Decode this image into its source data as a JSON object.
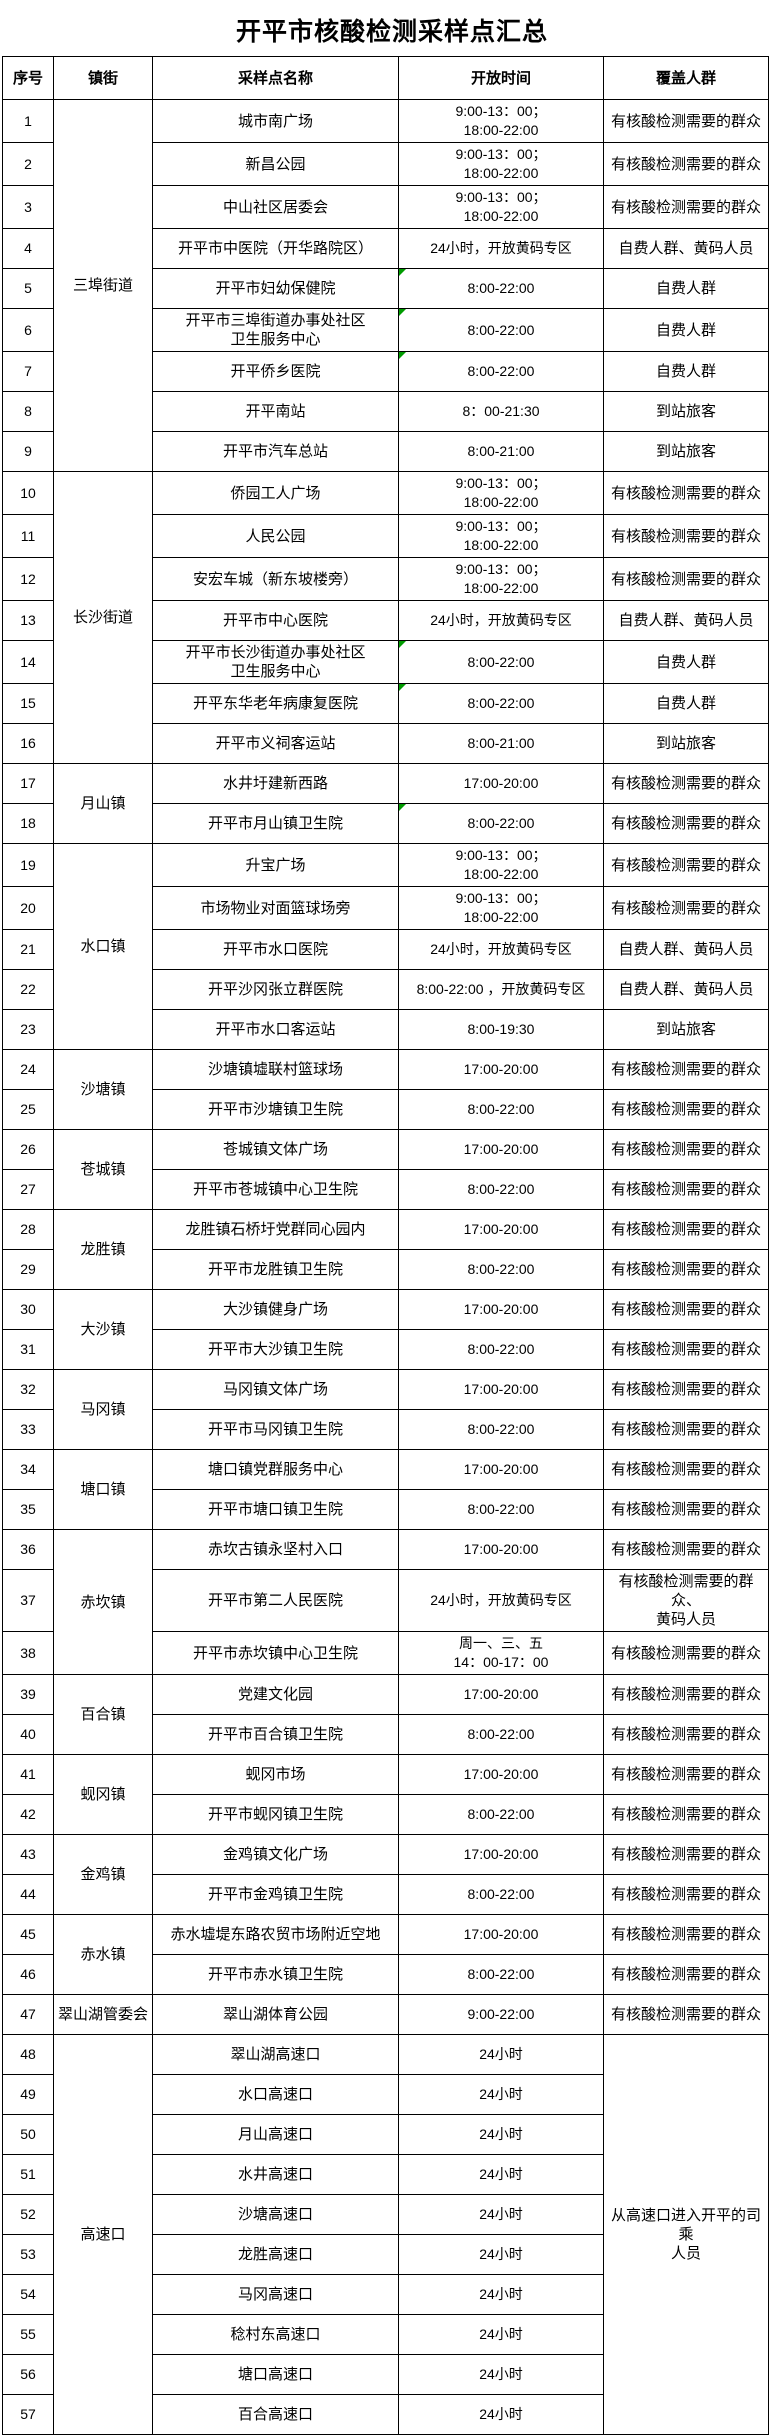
{
  "page": {
    "title": "开平市核酸检测采样点汇总"
  },
  "colors": {
    "background": "#ffffff",
    "text": "#000000",
    "border": "#000000",
    "green_corner_marker": "#009b00"
  },
  "table": {
    "columns": [
      "序号",
      "镇街",
      "采样点名称",
      "开放时间",
      "覆盖人群"
    ],
    "rows": [
      {
        "num": "1",
        "town": "三埠街道",
        "tspan": 9,
        "name": "城市南广场",
        "time": "9:00-13：00；\n18:00-22:00",
        "cover": "有核酸检测需要的群众"
      },
      {
        "num": "2",
        "name": "新昌公园",
        "time": "9:00-13：00；\n18:00-22:00",
        "cover": "有核酸检测需要的群众"
      },
      {
        "num": "3",
        "name": "中山社区居委会",
        "time": "9:00-13：00；\n18:00-22:00",
        "cover": "有核酸检测需要的群众"
      },
      {
        "num": "4",
        "name": "开平市中医院（开华路院区）",
        "time": "24小时，开放黄码专区",
        "cover": "自费人群、黄码人员"
      },
      {
        "num": "5",
        "name": "开平市妇幼保健院",
        "time": "8:00-22:00",
        "cover": "自费人群",
        "green": true
      },
      {
        "num": "6",
        "name": "开平市三埠街道办事处社区\n卫生服务中心",
        "time": "8:00-22:00",
        "cover": "自费人群",
        "green": true
      },
      {
        "num": "7",
        "name": "开平侨乡医院",
        "time": "8:00-22:00",
        "cover": "自费人群",
        "green": true
      },
      {
        "num": "8",
        "name": "开平南站",
        "time": "8：00-21:30",
        "cover": "到站旅客"
      },
      {
        "num": "9",
        "name": "开平市汽车总站",
        "time": "8:00-21:00",
        "cover": "到站旅客"
      },
      {
        "num": "10",
        "town": "长沙街道",
        "tspan": 7,
        "name": "侨园工人广场",
        "time": "9:00-13：00；\n18:00-22:00",
        "cover": "有核酸检测需要的群众"
      },
      {
        "num": "11",
        "name": "人民公园",
        "time": "9:00-13：00；\n18:00-22:00",
        "cover": "有核酸检测需要的群众"
      },
      {
        "num": "12",
        "name": "安宏车城（新东坡楼旁）",
        "time": "9:00-13：00；\n18:00-22:00",
        "cover": "有核酸检测需要的群众"
      },
      {
        "num": "13",
        "name": "开平市中心医院",
        "time": "24小时，开放黄码专区",
        "cover": "自费人群、黄码人员"
      },
      {
        "num": "14",
        "name": "开平市长沙街道办事处社区\n卫生服务中心",
        "time": "8:00-22:00",
        "cover": "自费人群",
        "green": true
      },
      {
        "num": "15",
        "name": "开平东华老年病康复医院",
        "time": "8:00-22:00",
        "cover": "自费人群",
        "green": true
      },
      {
        "num": "16",
        "name": "开平市义祠客运站",
        "time": "8:00-21:00",
        "cover": "到站旅客"
      },
      {
        "num": "17",
        "town": "月山镇",
        "tspan": 2,
        "name": "水井圩建新西路",
        "time": "17:00-20:00",
        "cover": "有核酸检测需要的群众"
      },
      {
        "num": "18",
        "name": "开平市月山镇卫生院",
        "time": "8:00-22:00",
        "cover": "有核酸检测需要的群众",
        "green": true
      },
      {
        "num": "19",
        "town": "水口镇",
        "tspan": 5,
        "name": "升宝广场",
        "time": "9:00-13：00；\n18:00-22:00",
        "cover": "有核酸检测需要的群众"
      },
      {
        "num": "20",
        "name": "市场物业对面篮球场旁",
        "time": "9:00-13：00；\n18:00-22:00",
        "cover": "有核酸检测需要的群众"
      },
      {
        "num": "21",
        "name": "开平市水口医院",
        "time": "24小时，开放黄码专区",
        "cover": "自费人群、黄码人员"
      },
      {
        "num": "22",
        "name": "开平沙冈张立群医院",
        "time": "8:00-22:00 ，开放黄码专区",
        "cover": "自费人群、黄码人员"
      },
      {
        "num": "23",
        "name": "开平市水口客运站",
        "time": "8:00-19:30",
        "cover": "到站旅客"
      },
      {
        "num": "24",
        "town": "沙塘镇",
        "tspan": 2,
        "name": "沙塘镇墟联村篮球场",
        "time": "17:00-20:00",
        "cover": "有核酸检测需要的群众"
      },
      {
        "num": "25",
        "name": "开平市沙塘镇卫生院",
        "time": "8:00-22:00",
        "cover": "有核酸检测需要的群众"
      },
      {
        "num": "26",
        "town": "苍城镇",
        "tspan": 2,
        "name": "苍城镇文体广场",
        "time": "17:00-20:00",
        "cover": "有核酸检测需要的群众"
      },
      {
        "num": "27",
        "name": "开平市苍城镇中心卫生院",
        "time": "8:00-22:00",
        "cover": "有核酸检测需要的群众"
      },
      {
        "num": "28",
        "town": "龙胜镇",
        "tspan": 2,
        "name": "龙胜镇石桥圩党群同心园内",
        "time": "17:00-20:00",
        "cover": "有核酸检测需要的群众"
      },
      {
        "num": "29",
        "name": "开平市龙胜镇卫生院",
        "time": "8:00-22:00",
        "cover": "有核酸检测需要的群众"
      },
      {
        "num": "30",
        "town": "大沙镇",
        "tspan": 2,
        "name": "大沙镇健身广场",
        "time": "17:00-20:00",
        "cover": "有核酸检测需要的群众"
      },
      {
        "num": "31",
        "name": "开平市大沙镇卫生院",
        "time": "8:00-22:00",
        "cover": "有核酸检测需要的群众"
      },
      {
        "num": "32",
        "town": "马冈镇",
        "tspan": 2,
        "name": "马冈镇文体广场",
        "time": "17:00-20:00",
        "cover": "有核酸检测需要的群众"
      },
      {
        "num": "33",
        "name": "开平市马冈镇卫生院",
        "time": "8:00-22:00",
        "cover": "有核酸检测需要的群众"
      },
      {
        "num": "34",
        "town": "塘口镇",
        "tspan": 2,
        "name": "塘口镇党群服务中心",
        "time": "17:00-20:00",
        "cover": "有核酸检测需要的群众"
      },
      {
        "num": "35",
        "name": "开平市塘口镇卫生院",
        "time": "8:00-22:00",
        "cover": "有核酸检测需要的群众"
      },
      {
        "num": "36",
        "town": "赤坎镇",
        "tspan": 3,
        "name": "赤坎古镇永坚村入口",
        "time": "17:00-20:00",
        "cover": "有核酸检测需要的群众"
      },
      {
        "num": "37",
        "name": "开平市第二人民医院",
        "time": "24小时，开放黄码专区",
        "cover": "有核酸检测需要的群众、\n黄码人员"
      },
      {
        "num": "38",
        "name": "开平市赤坎镇中心卫生院",
        "time": "周一、三、五\n14：00-17：00",
        "cover": "有核酸检测需要的群众"
      },
      {
        "num": "39",
        "town": "百合镇",
        "tspan": 2,
        "name": "党建文化园",
        "time": "17:00-20:00",
        "cover": "有核酸检测需要的群众"
      },
      {
        "num": "40",
        "name": "开平市百合镇卫生院",
        "time": "8:00-22:00",
        "cover": "有核酸检测需要的群众"
      },
      {
        "num": "41",
        "town": "蚬冈镇",
        "tspan": 2,
        "name": "蚬冈市场",
        "time": "17:00-20:00",
        "cover": "有核酸检测需要的群众"
      },
      {
        "num": "42",
        "name": "开平市蚬冈镇卫生院",
        "time": "8:00-22:00",
        "cover": "有核酸检测需要的群众"
      },
      {
        "num": "43",
        "town": "金鸡镇",
        "tspan": 2,
        "name": "金鸡镇文化广场",
        "time": "17:00-20:00",
        "cover": "有核酸检测需要的群众"
      },
      {
        "num": "44",
        "name": "开平市金鸡镇卫生院",
        "time": "8:00-22:00",
        "cover": "有核酸检测需要的群众"
      },
      {
        "num": "45",
        "town": "赤水镇",
        "tspan": 2,
        "name": "赤水墟堤东路农贸市场附近空地",
        "time": "17:00-20:00",
        "cover": "有核酸检测需要的群众"
      },
      {
        "num": "46",
        "name": "开平市赤水镇卫生院",
        "time": "8:00-22:00",
        "cover": "有核酸检测需要的群众"
      },
      {
        "num": "47",
        "town": "翠山湖管委会",
        "tspan": 1,
        "name": "翠山湖体育公园",
        "time": "9:00-22:00",
        "cover": "有核酸检测需要的群众"
      },
      {
        "num": "48",
        "town": "高速口",
        "tspan": 10,
        "name": "翠山湖高速口",
        "time": "24小时",
        "cover": "从高速口进入开平的司乘\n人员",
        "cspan": 10
      },
      {
        "num": "49",
        "name": "水口高速口",
        "time": "24小时"
      },
      {
        "num": "50",
        "name": "月山高速口",
        "time": "24小时"
      },
      {
        "num": "51",
        "name": "水井高速口",
        "time": "24小时"
      },
      {
        "num": "52",
        "name": "沙塘高速口",
        "time": "24小时"
      },
      {
        "num": "53",
        "name": "龙胜高速口",
        "time": "24小时"
      },
      {
        "num": "54",
        "name": "马冈高速口",
        "time": "24小时"
      },
      {
        "num": "55",
        "name": "稔村东高速口",
        "time": "24小时"
      },
      {
        "num": "56",
        "name": "塘口高速口",
        "time": "24小时"
      },
      {
        "num": "57",
        "name": "百合高速口",
        "time": "24小时"
      }
    ]
  }
}
